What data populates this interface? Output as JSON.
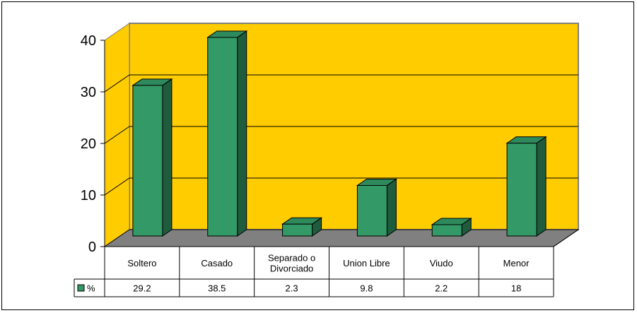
{
  "chart_data": {
    "type": "bar",
    "title": "",
    "xlabel": "",
    "ylabel": "",
    "ylim": [
      0,
      40
    ],
    "yticks": [
      0,
      10,
      20,
      30,
      40
    ],
    "grid": true,
    "categories": [
      [
        "Soltero"
      ],
      [
        "Casado"
      ],
      [
        "Separado o",
        "Divorciado"
      ],
      [
        "Union Libre"
      ],
      [
        "Viudo"
      ],
      [
        "Menor"
      ]
    ],
    "series": [
      {
        "name": "%",
        "values": [
          29.2,
          38.5,
          2.3,
          9.8,
          2.2,
          18
        ],
        "value_labels": [
          "29.2",
          "38.5",
          "2.3",
          "9.8",
          "2.2",
          "18"
        ]
      }
    ],
    "legend": "data-table",
    "colors": {
      "wall": "#FFCC00",
      "floor": "#808080",
      "bar_front": "#339966",
      "bar_side": "#1F5C3D",
      "bar_top": "#2E8A5C"
    }
  }
}
